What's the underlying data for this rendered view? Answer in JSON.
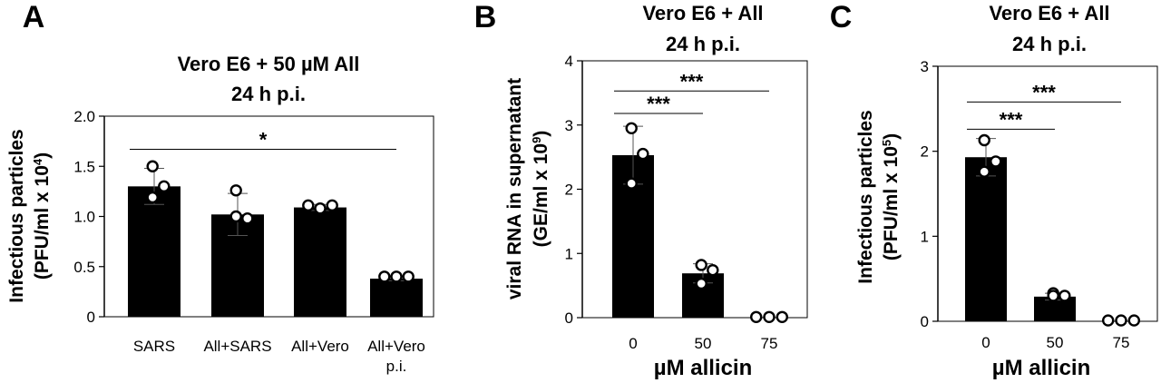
{
  "chart_data": [
    {
      "type": "bar",
      "panel": "A",
      "title_lines": [
        "Vero E6 + 50 µM All",
        "24 h p.i."
      ],
      "ylabel_lines": [
        "Infectious particles",
        "(PFU/ml x 10",
        "4",
        ")"
      ],
      "xlabel": "",
      "categories": [
        [
          "SARS"
        ],
        [
          "All+SARS"
        ],
        [
          "All+Vero"
        ],
        [
          "All+Vero",
          "p.i."
        ]
      ],
      "values": [
        1.3,
        1.02,
        1.09,
        0.38
      ],
      "errors": [
        0.18,
        0.21,
        0.03,
        0.02
      ],
      "points": [
        [
          1.5,
          1.3,
          1.19
        ],
        [
          1.26,
          0.98,
          1.0
        ],
        [
          1.11,
          1.08,
          1.11
        ],
        [
          0.4,
          0.4,
          0.4
        ]
      ],
      "ylim": [
        0,
        2.0
      ],
      "yticks": [
        "0",
        "0.5",
        "1.0",
        "1.5",
        "2.0"
      ],
      "ytick_values": [
        0,
        0.5,
        1.0,
        1.5,
        2.0
      ],
      "significance": [
        {
          "from": 0,
          "to": 3,
          "label": "*",
          "level": 1.67
        }
      ]
    },
    {
      "type": "bar",
      "panel": "B",
      "title_lines": [
        "Vero E6 + All",
        "24 h p.i."
      ],
      "ylabel_lines": [
        "viral RNA in supernatant",
        "(GE/ml x 10",
        "9",
        ")"
      ],
      "xlabel": "µM allicin",
      "categories": [
        [
          "0"
        ],
        [
          "50"
        ],
        [
          "75"
        ]
      ],
      "values": [
        2.53,
        0.69,
        0.005
      ],
      "errors": [
        0.45,
        0.15,
        0.0
      ],
      "points": [
        [
          2.95,
          2.55,
          2.09
        ],
        [
          0.82,
          0.74,
          0.53
        ],
        [
          0.01,
          0.01,
          0.01
        ]
      ],
      "ylim": [
        0,
        4
      ],
      "yticks": [
        "0",
        "1",
        "2",
        "3",
        "4"
      ],
      "ytick_values": [
        0,
        1,
        2,
        3,
        4
      ],
      "significance": [
        {
          "from": 0,
          "to": 1,
          "label": "***",
          "level": 3.18
        },
        {
          "from": 0,
          "to": 2,
          "label": "***",
          "level": 3.53
        }
      ]
    },
    {
      "type": "bar",
      "panel": "C",
      "title_lines": [
        "Vero E6 + All",
        "24 h p.i."
      ],
      "ylabel_lines": [
        "Infectious particles",
        "(PFU/ml x 10",
        "5",
        ")"
      ],
      "xlabel": "µM allicin",
      "categories": [
        [
          "0"
        ],
        [
          "50"
        ],
        [
          "75"
        ]
      ],
      "values": [
        1.93,
        0.29,
        0.005
      ],
      "errors": [
        0.22,
        0.04,
        0.0
      ],
      "points": [
        [
          2.13,
          1.88,
          1.76
        ],
        [
          0.33,
          0.3,
          0.3
        ],
        [
          0.01,
          0.01,
          0.01
        ]
      ],
      "ylim": [
        0,
        3
      ],
      "yticks": [
        "0",
        "1",
        "2",
        "3"
      ],
      "ytick_values": [
        0,
        1,
        2,
        3
      ],
      "significance": [
        {
          "from": 0,
          "to": 1,
          "label": "***",
          "level": 2.26
        },
        {
          "from": 0,
          "to": 2,
          "label": "***",
          "level": 2.58
        }
      ]
    }
  ]
}
